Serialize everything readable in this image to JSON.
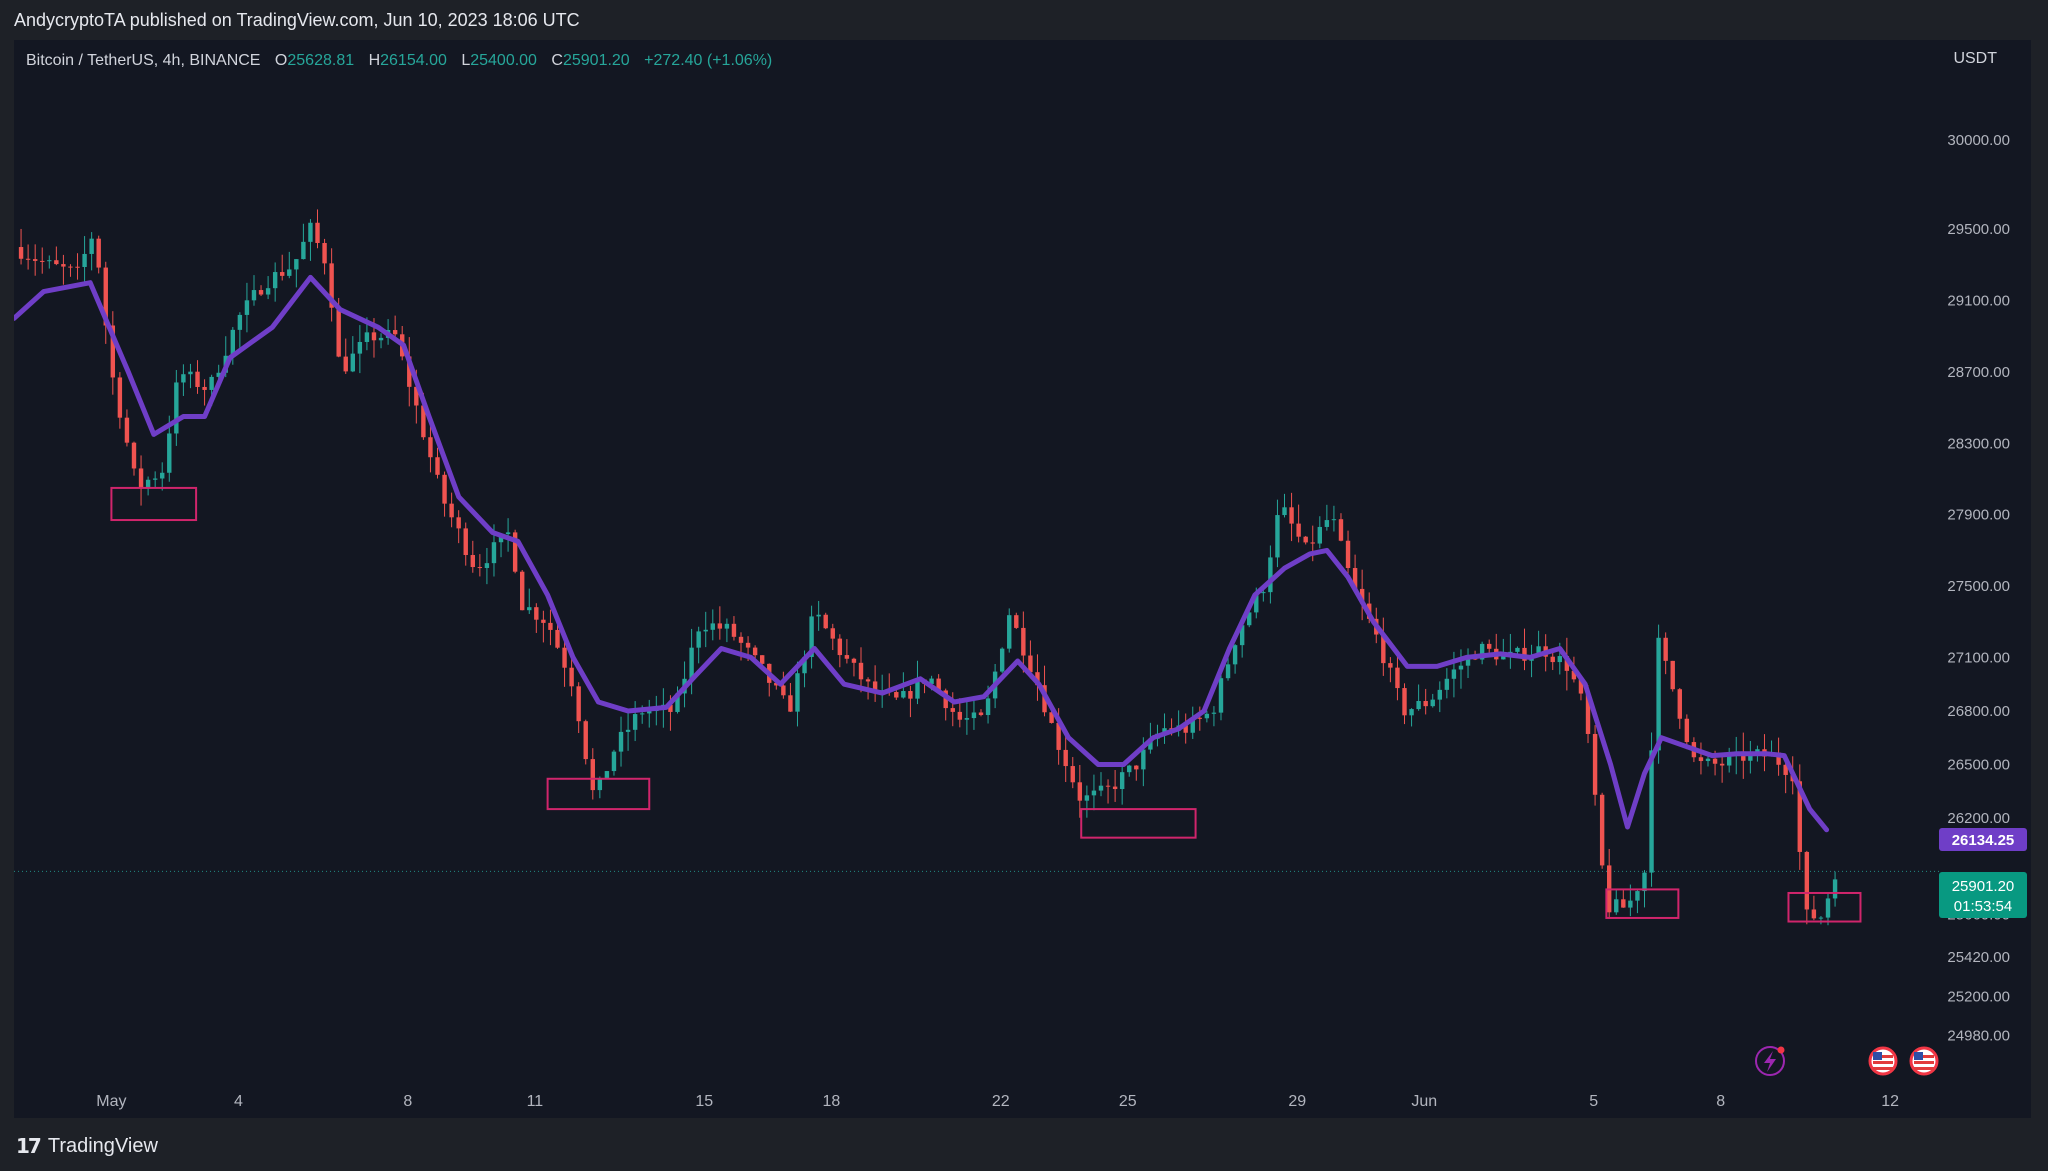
{
  "header": {
    "published": "AndycryptoTA published on TradingView.com, Jun 10, 2023 18:06 UTC"
  },
  "legend": {
    "symbol": "Bitcoin / TetherUS, 4h, BINANCE",
    "open_label": "O",
    "open": "25628.81",
    "high_label": "H",
    "high": "26154.00",
    "low_label": "L",
    "low": "25400.00",
    "close_label": "C",
    "close": "25901.20",
    "change": "+272.40 (+1.06%)"
  },
  "currency": "USDT",
  "price_tags": {
    "ma_value": "26134.25",
    "last_price": "25901.20",
    "countdown": "01:53:54"
  },
  "footer": {
    "brand": "TradingView",
    "logo_text": "17"
  },
  "colors": {
    "background": "#131722",
    "up": "#26a69a",
    "down": "#ef5350",
    "ma": "#6f3ec7",
    "box": "#d0256c",
    "text": "#b2b5be"
  },
  "chart_data": {
    "type": "candlestick",
    "interval": "4h",
    "ylim": [
      24900,
      30280
    ],
    "y_ticks": [
      "30000.00",
      "29500.00",
      "29100.00",
      "28700.00",
      "28300.00",
      "27900.00",
      "27500.00",
      "27100.00",
      "26800.00",
      "26500.00",
      "26200.00",
      "25660.00",
      "25420.00",
      "25200.00",
      "24980.00"
    ],
    "x_ticks": [
      {
        "label": "May",
        "day": 1
      },
      {
        "label": "4",
        "day": 4
      },
      {
        "label": "8",
        "day": 8
      },
      {
        "label": "11",
        "day": 11
      },
      {
        "label": "15",
        "day": 15
      },
      {
        "label": "18",
        "day": 18
      },
      {
        "label": "22",
        "day": 22
      },
      {
        "label": "25",
        "day": 25
      },
      {
        "label": "29",
        "day": 29
      },
      {
        "label": "Jun",
        "day": 32
      },
      {
        "label": "5",
        "day": 36
      },
      {
        "label": "8",
        "day": 39
      },
      {
        "label": "12",
        "day": 43
      }
    ],
    "anchors": [
      {
        "day": -1.3,
        "price": 29400
      },
      {
        "day": -0.5,
        "price": 29300
      },
      {
        "day": 0.2,
        "price": 29250
      },
      {
        "day": 0.6,
        "price": 29500
      },
      {
        "day": 1.0,
        "price": 28700
      },
      {
        "day": 1.6,
        "price": 28050
      },
      {
        "day": 2.2,
        "price": 28150
      },
      {
        "day": 2.6,
        "price": 28700
      },
      {
        "day": 3.3,
        "price": 28600
      },
      {
        "day": 4.0,
        "price": 29000
      },
      {
        "day": 4.6,
        "price": 29200
      },
      {
        "day": 5.3,
        "price": 29300
      },
      {
        "day": 5.7,
        "price": 29500
      },
      {
        "day": 6.1,
        "price": 29300
      },
      {
        "day": 6.4,
        "price": 28700
      },
      {
        "day": 7.1,
        "price": 28900
      },
      {
        "day": 7.7,
        "price": 28900
      },
      {
        "day": 8.2,
        "price": 28500
      },
      {
        "day": 8.8,
        "price": 28000
      },
      {
        "day": 9.6,
        "price": 27600
      },
      {
        "day": 10.4,
        "price": 27800
      },
      {
        "day": 10.7,
        "price": 27400
      },
      {
        "day": 11.3,
        "price": 27300
      },
      {
        "day": 11.9,
        "price": 26950
      },
      {
        "day": 12.4,
        "price": 26300
      },
      {
        "day": 12.9,
        "price": 26600
      },
      {
        "day": 13.5,
        "price": 26800
      },
      {
        "day": 14.3,
        "price": 26800
      },
      {
        "day": 14.9,
        "price": 27300
      },
      {
        "day": 15.6,
        "price": 27250
      },
      {
        "day": 16.3,
        "price": 27050
      },
      {
        "day": 17.0,
        "price": 26800
      },
      {
        "day": 17.6,
        "price": 27350
      },
      {
        "day": 18.3,
        "price": 27100
      },
      {
        "day": 19.0,
        "price": 26900
      },
      {
        "day": 19.6,
        "price": 26850
      },
      {
        "day": 20.3,
        "price": 27000
      },
      {
        "day": 21.0,
        "price": 26750
      },
      {
        "day": 21.6,
        "price": 26750
      },
      {
        "day": 22.2,
        "price": 27350
      },
      {
        "day": 22.8,
        "price": 27000
      },
      {
        "day": 23.3,
        "price": 26650
      },
      {
        "day": 23.9,
        "price": 26300
      },
      {
        "day": 24.5,
        "price": 26350
      },
      {
        "day": 25.2,
        "price": 26500
      },
      {
        "day": 25.8,
        "price": 26700
      },
      {
        "day": 26.4,
        "price": 26700
      },
      {
        "day": 27.0,
        "price": 26800
      },
      {
        "day": 27.6,
        "price": 27250
      },
      {
        "day": 28.2,
        "price": 27500
      },
      {
        "day": 28.6,
        "price": 27950
      },
      {
        "day": 29.2,
        "price": 27700
      },
      {
        "day": 29.8,
        "price": 27900
      },
      {
        "day": 30.3,
        "price": 27500
      },
      {
        "day": 30.9,
        "price": 27200
      },
      {
        "day": 31.5,
        "price": 26800
      },
      {
        "day": 32.1,
        "price": 26850
      },
      {
        "day": 32.6,
        "price": 27000
      },
      {
        "day": 33.3,
        "price": 27150
      },
      {
        "day": 34.0,
        "price": 27100
      },
      {
        "day": 34.8,
        "price": 27150
      },
      {
        "day": 35.4,
        "price": 27050
      },
      {
        "day": 35.8,
        "price": 26800
      },
      {
        "day": 36.3,
        "price": 25700
      },
      {
        "day": 36.8,
        "price": 25700
      },
      {
        "day": 37.2,
        "price": 25900
      },
      {
        "day": 37.5,
        "price": 27200
      },
      {
        "day": 37.9,
        "price": 26900
      },
      {
        "day": 38.4,
        "price": 26500
      },
      {
        "day": 39.0,
        "price": 26500
      },
      {
        "day": 39.6,
        "price": 26550
      },
      {
        "day": 40.2,
        "price": 26550
      },
      {
        "day": 40.7,
        "price": 26450
      },
      {
        "day": 41.0,
        "price": 25650
      },
      {
        "day": 41.4,
        "price": 25650
      },
      {
        "day": 41.7,
        "price": 25900
      }
    ],
    "moving_average": [
      {
        "day": -1.3,
        "price": 29000
      },
      {
        "day": -0.6,
        "price": 29150
      },
      {
        "day": 0.5,
        "price": 29200
      },
      {
        "day": 1.4,
        "price": 28700
      },
      {
        "day": 2.0,
        "price": 28350
      },
      {
        "day": 2.7,
        "price": 28450
      },
      {
        "day": 3.2,
        "price": 28450
      },
      {
        "day": 3.8,
        "price": 28780
      },
      {
        "day": 4.8,
        "price": 28950
      },
      {
        "day": 5.7,
        "price": 29230
      },
      {
        "day": 6.4,
        "price": 29050
      },
      {
        "day": 7.3,
        "price": 28950
      },
      {
        "day": 7.9,
        "price": 28850
      },
      {
        "day": 8.5,
        "price": 28450
      },
      {
        "day": 9.2,
        "price": 28000
      },
      {
        "day": 10.0,
        "price": 27800
      },
      {
        "day": 10.6,
        "price": 27750
      },
      {
        "day": 11.3,
        "price": 27450
      },
      {
        "day": 11.9,
        "price": 27100
      },
      {
        "day": 12.5,
        "price": 26850
      },
      {
        "day": 13.2,
        "price": 26800
      },
      {
        "day": 14.1,
        "price": 26820
      },
      {
        "day": 14.8,
        "price": 27000
      },
      {
        "day": 15.4,
        "price": 27150
      },
      {
        "day": 16.1,
        "price": 27100
      },
      {
        "day": 16.8,
        "price": 26950
      },
      {
        "day": 17.6,
        "price": 27150
      },
      {
        "day": 18.3,
        "price": 26950
      },
      {
        "day": 19.2,
        "price": 26900
      },
      {
        "day": 20.1,
        "price": 26980
      },
      {
        "day": 20.9,
        "price": 26850
      },
      {
        "day": 21.6,
        "price": 26880
      },
      {
        "day": 22.4,
        "price": 27080
      },
      {
        "day": 22.9,
        "price": 26950
      },
      {
        "day": 23.6,
        "price": 26650
      },
      {
        "day": 24.3,
        "price": 26500
      },
      {
        "day": 24.9,
        "price": 26500
      },
      {
        "day": 25.6,
        "price": 26650
      },
      {
        "day": 26.2,
        "price": 26700
      },
      {
        "day": 26.8,
        "price": 26800
      },
      {
        "day": 27.4,
        "price": 27150
      },
      {
        "day": 28.0,
        "price": 27450
      },
      {
        "day": 28.7,
        "price": 27600
      },
      {
        "day": 29.3,
        "price": 27680
      },
      {
        "day": 29.7,
        "price": 27700
      },
      {
        "day": 30.2,
        "price": 27550
      },
      {
        "day": 30.8,
        "price": 27300
      },
      {
        "day": 31.6,
        "price": 27050
      },
      {
        "day": 32.3,
        "price": 27050
      },
      {
        "day": 33.0,
        "price": 27100
      },
      {
        "day": 33.8,
        "price": 27120
      },
      {
        "day": 34.5,
        "price": 27100
      },
      {
        "day": 35.2,
        "price": 27150
      },
      {
        "day": 35.8,
        "price": 26950
      },
      {
        "day": 36.4,
        "price": 26500
      },
      {
        "day": 36.8,
        "price": 26150
      },
      {
        "day": 37.2,
        "price": 26450
      },
      {
        "day": 37.6,
        "price": 26650
      },
      {
        "day": 38.2,
        "price": 26600
      },
      {
        "day": 38.8,
        "price": 26550
      },
      {
        "day": 39.4,
        "price": 26560
      },
      {
        "day": 40.1,
        "price": 26560
      },
      {
        "day": 40.5,
        "price": 26550
      },
      {
        "day": 41.1,
        "price": 26250
      },
      {
        "day": 41.5,
        "price": 26134
      }
    ],
    "support_boxes": [
      {
        "day_from": 1.0,
        "day_to": 3.0,
        "price_low": 27870,
        "price_high": 28050
      },
      {
        "day_from": 11.3,
        "day_to": 13.7,
        "price_low": 26250,
        "price_high": 26420
      },
      {
        "day_from": 23.9,
        "day_to": 26.6,
        "price_low": 26090,
        "price_high": 26250
      },
      {
        "day_from": 36.3,
        "day_to": 38.0,
        "price_low": 25640,
        "price_high": 25800
      },
      {
        "day_from": 40.6,
        "day_to": 42.3,
        "price_low": 25620,
        "price_high": 25780
      }
    ],
    "current_price": 25901.2
  }
}
